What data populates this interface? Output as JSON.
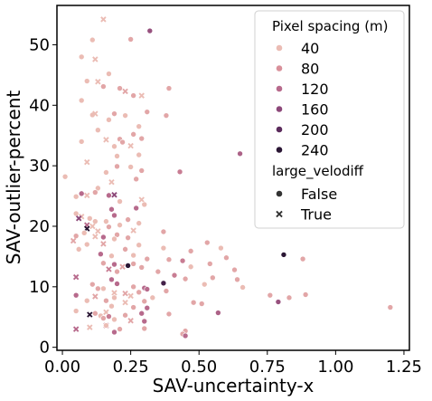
{
  "chart_data": {
    "type": "scatter",
    "xlabel": "SAV-uncertainty-x",
    "ylabel": "SAV-outlier-percent",
    "xlim": [
      -0.02,
      1.27
    ],
    "ylim": [
      -0.5,
      56.5
    ],
    "xticks": [
      0.0,
      0.25,
      0.5,
      0.75,
      1.0,
      1.25
    ],
    "xtick_labels": [
      "0.00",
      "0.25",
      "0.50",
      "0.75",
      "1.00",
      "1.25"
    ],
    "yticks": [
      0,
      10,
      20,
      30,
      40,
      50
    ],
    "ytick_labels": [
      "0",
      "10",
      "20",
      "30",
      "40",
      "50"
    ],
    "grid": false,
    "legend_placement": "top-right",
    "hue_title": "Pixel spacing (m)",
    "hue_levels": [
      {
        "label": "40",
        "value": 40,
        "color": "#ebbcb4"
      },
      {
        "label": "80",
        "value": 80,
        "color": "#d9909a"
      },
      {
        "label": "120",
        "value": 120,
        "color": "#b76a8c"
      },
      {
        "label": "160",
        "value": 160,
        "color": "#8c4879"
      },
      {
        "label": "200",
        "value": 200,
        "color": "#5b2b5c"
      },
      {
        "label": "240",
        "value": 240,
        "color": "#2a1634"
      }
    ],
    "style_title": "large_velodiff",
    "style_levels": [
      {
        "label": "False",
        "marker": "circle"
      },
      {
        "label": "True",
        "marker": "x"
      }
    ],
    "points": [
      [
        0.11,
        50.8,
        40,
        false
      ],
      [
        0.25,
        50.9,
        60,
        false
      ],
      [
        0.32,
        52.3,
        150,
        false
      ],
      [
        0.15,
        54.2,
        40,
        true
      ],
      [
        0.07,
        48.0,
        40,
        false
      ],
      [
        0.12,
        47.6,
        40,
        true
      ],
      [
        0.09,
        44.0,
        40,
        false
      ],
      [
        0.17,
        45.2,
        40,
        false
      ],
      [
        0.15,
        43.1,
        60,
        false
      ],
      [
        0.13,
        43.9,
        40,
        true
      ],
      [
        0.21,
        42.8,
        60,
        false
      ],
      [
        0.23,
        42.3,
        60,
        true
      ],
      [
        0.26,
        41.6,
        60,
        false
      ],
      [
        0.29,
        41.6,
        40,
        true
      ],
      [
        0.39,
        42.8,
        60,
        false
      ],
      [
        0.07,
        40.8,
        40,
        false
      ],
      [
        0.11,
        38.4,
        40,
        false
      ],
      [
        0.12,
        38.6,
        40,
        true
      ],
      [
        0.17,
        37.6,
        40,
        false
      ],
      [
        0.19,
        38.6,
        60,
        false
      ],
      [
        0.23,
        38.3,
        40,
        false
      ],
      [
        0.31,
        38.9,
        60,
        false
      ],
      [
        0.38,
        38.3,
        60,
        false
      ],
      [
        0.13,
        35.9,
        40,
        false
      ],
      [
        0.28,
        36.5,
        40,
        false
      ],
      [
        0.16,
        34.3,
        40,
        true
      ],
      [
        0.21,
        34.4,
        60,
        false
      ],
      [
        0.26,
        35.2,
        60,
        false
      ],
      [
        0.07,
        34.0,
        40,
        false
      ],
      [
        0.19,
        33.2,
        40,
        false
      ],
      [
        0.22,
        33.9,
        60,
        false
      ],
      [
        0.25,
        33.3,
        40,
        true
      ],
      [
        0.29,
        34.5,
        60,
        false
      ],
      [
        0.65,
        32.0,
        130,
        false
      ],
      [
        0.09,
        30.6,
        40,
        true
      ],
      [
        0.2,
        31.6,
        40,
        false
      ],
      [
        0.28,
        31.8,
        40,
        false
      ],
      [
        0.2,
        29.9,
        60,
        false
      ],
      [
        0.25,
        29.8,
        40,
        false
      ],
      [
        0.29,
        29.2,
        60,
        false
      ],
      [
        0.43,
        29.0,
        100,
        false
      ],
      [
        0.01,
        28.2,
        40,
        false
      ],
      [
        0.16,
        28.9,
        40,
        false
      ],
      [
        0.18,
        27.3,
        40,
        true
      ],
      [
        0.27,
        27.8,
        60,
        false
      ],
      [
        0.13,
        26.3,
        40,
        false
      ],
      [
        0.07,
        25.4,
        120,
        false
      ],
      [
        0.09,
        25.1,
        40,
        true
      ],
      [
        0.12,
        25.6,
        60,
        false
      ],
      [
        0.17,
        25.1,
        120,
        false
      ],
      [
        0.19,
        25.2,
        160,
        true
      ],
      [
        0.05,
        24.9,
        40,
        false
      ],
      [
        0.21,
        24.1,
        40,
        false
      ],
      [
        0.29,
        24.4,
        40,
        true
      ],
      [
        0.18,
        22.8,
        120,
        false
      ],
      [
        0.27,
        23.0,
        120,
        false
      ],
      [
        0.3,
        23.6,
        40,
        false
      ],
      [
        0.05,
        22.1,
        40,
        false
      ],
      [
        0.07,
        21.6,
        40,
        true
      ],
      [
        0.1,
        21.3,
        40,
        false
      ],
      [
        0.12,
        20.8,
        40,
        false
      ],
      [
        0.19,
        21.8,
        120,
        false
      ],
      [
        0.24,
        21.1,
        60,
        false
      ],
      [
        0.06,
        21.3,
        160,
        true
      ],
      [
        0.09,
        20.2,
        120,
        true
      ],
      [
        0.11,
        20.0,
        40,
        true
      ],
      [
        0.16,
        20.8,
        40,
        false
      ],
      [
        0.21,
        20.2,
        40,
        false
      ],
      [
        0.28,
        20.5,
        40,
        false
      ],
      [
        0.09,
        19.6,
        240,
        true
      ],
      [
        0.13,
        19.2,
        40,
        true
      ],
      [
        0.17,
        19.9,
        60,
        false
      ],
      [
        0.26,
        19.3,
        40,
        true
      ],
      [
        0.37,
        19.1,
        60,
        false
      ],
      [
        0.05,
        18.4,
        60,
        false
      ],
      [
        0.08,
        18.9,
        40,
        false
      ],
      [
        0.12,
        18.3,
        40,
        true
      ],
      [
        0.15,
        18.2,
        120,
        false
      ],
      [
        0.2,
        18.6,
        60,
        false
      ],
      [
        0.24,
        18.1,
        60,
        false
      ],
      [
        0.04,
        17.6,
        60,
        true
      ],
      [
        0.09,
        17.0,
        40,
        false
      ],
      [
        0.15,
        17.1,
        60,
        true
      ],
      [
        0.19,
        17.9,
        40,
        false
      ],
      [
        0.28,
        16.9,
        40,
        false
      ],
      [
        0.53,
        17.3,
        60,
        false
      ],
      [
        0.06,
        16.2,
        40,
        false
      ],
      [
        0.23,
        16.2,
        60,
        false
      ],
      [
        0.37,
        16.4,
        40,
        false
      ],
      [
        0.47,
        15.9,
        60,
        false
      ],
      [
        0.58,
        16.4,
        40,
        false
      ],
      [
        0.14,
        15.4,
        120,
        false
      ],
      [
        0.18,
        15.1,
        40,
        false
      ],
      [
        0.26,
        15.2,
        40,
        false
      ],
      [
        0.81,
        15.3,
        240,
        false
      ],
      [
        0.31,
        14.6,
        60,
        false
      ],
      [
        0.39,
        14.5,
        60,
        false
      ],
      [
        0.44,
        14.3,
        100,
        false
      ],
      [
        0.6,
        14.8,
        60,
        false
      ],
      [
        0.88,
        14.6,
        60,
        false
      ],
      [
        0.15,
        13.9,
        60,
        false
      ],
      [
        0.19,
        13.7,
        120,
        false
      ],
      [
        0.22,
        13.3,
        60,
        true
      ],
      [
        0.24,
        13.5,
        240,
        false
      ],
      [
        0.26,
        13.8,
        60,
        false
      ],
      [
        0.29,
        13.2,
        60,
        false
      ],
      [
        0.47,
        13.3,
        40,
        false
      ],
      [
        0.54,
        13.8,
        60,
        false
      ],
      [
        0.17,
        12.9,
        100,
        true
      ],
      [
        0.2,
        12.5,
        60,
        false
      ],
      [
        0.35,
        12.5,
        60,
        false
      ],
      [
        0.63,
        12.8,
        60,
        false
      ],
      [
        0.05,
        11.6,
        120,
        true
      ],
      [
        0.18,
        11.2,
        120,
        false
      ],
      [
        0.41,
        11.9,
        100,
        false
      ],
      [
        0.45,
        11.3,
        60,
        false
      ],
      [
        0.55,
        11.5,
        60,
        false
      ],
      [
        0.64,
        11.2,
        60,
        false
      ],
      [
        0.37,
        10.6,
        220,
        false
      ],
      [
        0.52,
        10.4,
        40,
        false
      ],
      [
        0.11,
        10.4,
        60,
        false
      ],
      [
        0.13,
        9.7,
        60,
        false
      ],
      [
        0.15,
        9.7,
        40,
        false
      ],
      [
        0.2,
        10.5,
        120,
        false
      ],
      [
        0.26,
        10.0,
        60,
        false
      ],
      [
        0.3,
        9.8,
        120,
        false
      ],
      [
        0.31,
        9.6,
        120,
        false
      ],
      [
        0.38,
        9.3,
        60,
        false
      ],
      [
        0.66,
        9.9,
        40,
        false
      ],
      [
        0.19,
        9.0,
        40,
        true
      ],
      [
        0.23,
        8.9,
        60,
        true
      ],
      [
        0.28,
        9.1,
        60,
        false
      ],
      [
        0.05,
        8.6,
        120,
        false
      ],
      [
        0.12,
        8.4,
        60,
        true
      ],
      [
        0.19,
        8.2,
        40,
        false
      ],
      [
        0.25,
        8.5,
        40,
        true
      ],
      [
        0.33,
        8.2,
        40,
        false
      ],
      [
        0.76,
        8.6,
        60,
        false
      ],
      [
        0.83,
        8.2,
        60,
        false
      ],
      [
        0.89,
        8.7,
        60,
        false
      ],
      [
        0.09,
        7.7,
        40,
        false
      ],
      [
        0.16,
        7.7,
        60,
        false
      ],
      [
        0.23,
        7.4,
        40,
        true
      ],
      [
        0.3,
        7.6,
        60,
        false
      ],
      [
        0.48,
        7.4,
        60,
        false
      ],
      [
        0.51,
        7.2,
        60,
        false
      ],
      [
        0.79,
        7.5,
        150,
        false
      ],
      [
        0.18,
        6.8,
        40,
        false
      ],
      [
        0.26,
        6.6,
        60,
        false
      ],
      [
        0.31,
        6.5,
        120,
        false
      ],
      [
        1.2,
        6.6,
        60,
        false
      ],
      [
        0.05,
        6.0,
        40,
        false
      ],
      [
        0.12,
        5.6,
        60,
        false
      ],
      [
        0.16,
        5.8,
        40,
        true
      ],
      [
        0.1,
        5.4,
        240,
        true
      ],
      [
        0.14,
        5.2,
        40,
        false
      ],
      [
        0.15,
        4.8,
        60,
        false
      ],
      [
        0.17,
        5.1,
        100,
        false
      ],
      [
        0.23,
        5.3,
        60,
        false
      ],
      [
        0.29,
        5.6,
        120,
        false
      ],
      [
        0.39,
        5.5,
        60,
        false
      ],
      [
        0.57,
        5.7,
        130,
        false
      ],
      [
        0.19,
        4.6,
        40,
        false
      ],
      [
        0.25,
        4.4,
        60,
        true
      ],
      [
        0.3,
        4.3,
        120,
        false
      ],
      [
        0.05,
        3.0,
        120,
        true
      ],
      [
        0.16,
        3.6,
        100,
        true
      ],
      [
        0.1,
        3.3,
        40,
        true
      ],
      [
        0.21,
        3.0,
        60,
        false
      ],
      [
        0.19,
        2.5,
        120,
        false
      ],
      [
        0.3,
        3.1,
        60,
        false
      ],
      [
        0.45,
        2.7,
        60,
        false
      ],
      [
        0.44,
        2.2,
        60,
        false
      ],
      [
        0.45,
        1.9,
        120,
        false
      ],
      [
        0.16,
        3.6,
        40,
        false
      ]
    ]
  }
}
